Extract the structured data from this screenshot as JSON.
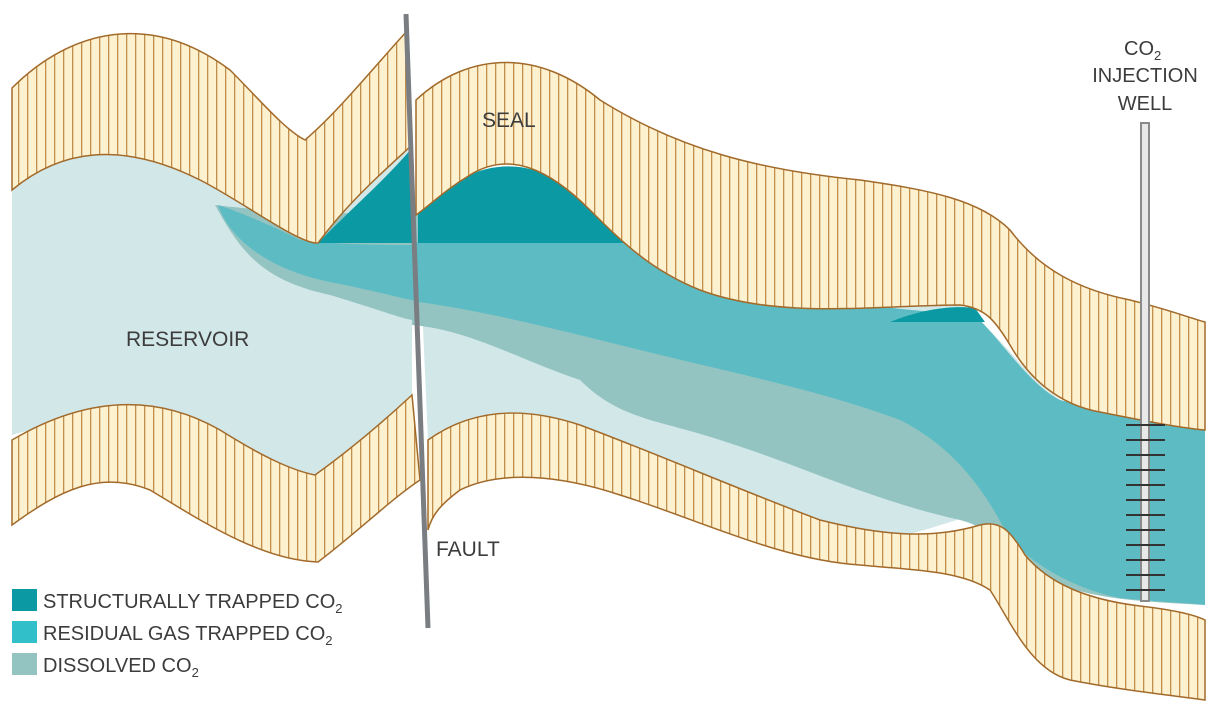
{
  "labels": {
    "seal": "SEAL",
    "reservoir": "RESERVOIR",
    "fault": "FAULT",
    "well_line1": "CO",
    "well_line1_sub": "2",
    "well_line2": "INJECTION",
    "well_line3": "WELL"
  },
  "legend": [
    {
      "text": "STRUCTURALLY TRAPPED CO",
      "sub": "2",
      "color": "#0b9aa3"
    },
    {
      "text": "RESIDUAL GAS TRAPPED CO",
      "sub": "2",
      "color": "#31bfca"
    },
    {
      "text": "DISSOLVED CO",
      "sub": "2",
      "color": "#94c4c2"
    }
  ],
  "colors": {
    "seal_fill": "#fdf1cf",
    "seal_stripe": "#c28e4c",
    "seal_outline": "#a26a2a",
    "reservoir": "#d2e7e8",
    "dissolved": "#94c4c2",
    "residual": "#5dbcc3",
    "structural": "#0b9aa3",
    "fault": "#7a7e82",
    "well": "#9a9a9a"
  }
}
